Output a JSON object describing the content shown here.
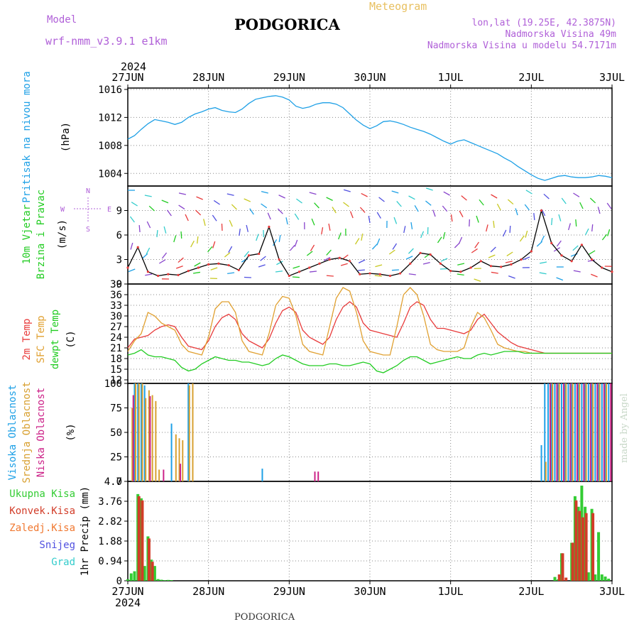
{
  "header": {
    "model_label": "Model",
    "model_name": "wrf-nmm_v3.9.1 e1km",
    "city": "PODGORICA",
    "meteogram": "Meteogram",
    "location": "lon,lat (19.25E, 42.3875N)",
    "elevation": "Nadmorska Visina 49m",
    "model_elevation": "Nadmorska Visina u modelu 54.7171m",
    "footer_city": "PODGORICA",
    "credit": "made by Angel"
  },
  "colors": {
    "pressure": "#1ea0e6",
    "wind_green": "#22cc22",
    "temp2m": "#e83b3b",
    "sfc": "#e0a030",
    "dew": "#22cc22",
    "high": "#1ea0e6",
    "mid": "#d8a030",
    "low": "#cc2288",
    "total": "#33cc33",
    "conv": "#d23c28",
    "frozen": "#f07830",
    "snow": "#5050e0",
    "graupel": "#33cccc",
    "compass": "#b060d8"
  },
  "chart_data": [
    {
      "type": "line",
      "panel": "pressure",
      "ylabel": [
        "Pritisak na nivou mora",
        "(hPa)"
      ],
      "yticks": [
        "1004",
        "1008",
        "1012",
        "1016"
      ],
      "ylim": [
        1002.2,
        1016.2
      ],
      "x_year": "2024",
      "xticks": [
        "27JUN",
        "28JUN",
        "29JUN",
        "30JUN",
        "1JUL",
        "2JUL",
        "3JUL"
      ],
      "series": [
        {
          "x": [
            0,
            2,
            4,
            6,
            8,
            10,
            12,
            14,
            16,
            18,
            20,
            22,
            24,
            26,
            28,
            30,
            32,
            34,
            36,
            38,
            40,
            42,
            44,
            46,
            48,
            50,
            52,
            54,
            56,
            58,
            60,
            62,
            64,
            66,
            68,
            70,
            72,
            74,
            76,
            78,
            80,
            82,
            84,
            86,
            88,
            90,
            92,
            94,
            96,
            98,
            100,
            102,
            104,
            106,
            108,
            110,
            112,
            114,
            116,
            118,
            120,
            122,
            124,
            126,
            128,
            130,
            132,
            134,
            136,
            138,
            140,
            142,
            144
          ],
          "values": [
            1008.9,
            1009.4,
            1010.3,
            1011.1,
            1011.7,
            1011.5,
            1011.3,
            1011.0,
            1011.3,
            1012.0,
            1012.5,
            1012.8,
            1013.2,
            1013.4,
            1013.0,
            1012.8,
            1012.7,
            1013.2,
            1014.0,
            1014.6,
            1014.8,
            1015.0,
            1015.1,
            1014.9,
            1014.5,
            1013.6,
            1013.3,
            1013.5,
            1013.9,
            1014.1,
            1014.1,
            1013.9,
            1013.4,
            1012.5,
            1011.6,
            1010.9,
            1010.4,
            1010.8,
            1011.4,
            1011.5,
            1011.3,
            1011.0,
            1010.6,
            1010.3,
            1010.0,
            1009.6,
            1009.1,
            1008.6,
            1008.2,
            1008.6,
            1008.8,
            1008.4,
            1008.0,
            1007.6,
            1007.2,
            1006.8,
            1006.2,
            1005.7,
            1005.0,
            1004.4,
            1003.8,
            1003.3,
            1003.0,
            1003.3,
            1003.6,
            1003.7,
            1003.5,
            1003.4,
            1003.4,
            1003.5,
            1003.7,
            1003.6,
            1003.4
          ]
        }
      ]
    },
    {
      "type": "line",
      "panel": "wind",
      "ylabel": [
        "10m Vjetar",
        "Brzina i Pravac",
        "(m/s)"
      ],
      "compass": [
        "N",
        "W",
        "E",
        "S"
      ],
      "yticks": [
        "0",
        "3",
        "6",
        "9"
      ],
      "ylim": [
        0,
        12
      ],
      "series": [
        {
          "x": [
            0,
            3,
            6,
            9,
            12,
            15,
            18,
            21,
            24,
            27,
            30,
            33,
            36,
            39,
            42,
            45,
            48,
            51,
            54,
            57,
            60,
            63,
            66,
            69,
            72,
            75,
            78,
            81,
            84,
            87,
            90,
            93,
            96,
            99,
            102,
            105,
            108,
            111,
            114,
            117,
            120,
            123,
            126,
            129,
            132,
            135,
            138,
            141,
            144
          ],
          "values": [
            2.0,
            4.5,
            1.5,
            1.0,
            1.2,
            1.1,
            1.6,
            2.0,
            2.4,
            2.5,
            2.3,
            1.7,
            3.5,
            3.7,
            7.0,
            3.0,
            1.0,
            1.5,
            2.0,
            2.5,
            3.0,
            3.2,
            2.8,
            1.2,
            1.3,
            1.2,
            1.0,
            1.3,
            2.5,
            3.8,
            3.6,
            2.5,
            1.6,
            1.5,
            2.0,
            2.8,
            2.2,
            2.1,
            2.4,
            3.0,
            4.0,
            9.0,
            5.0,
            3.5,
            2.8,
            4.8,
            3.0,
            2.0,
            1.5
          ]
        }
      ]
    },
    {
      "type": "line",
      "panel": "temperature",
      "ylabel": [
        "2m Temp",
        "SFC Temp",
        "dewpt Temp",
        "(C)"
      ],
      "yticks": [
        "12",
        "15",
        "18",
        "21",
        "24",
        "27",
        "30",
        "33",
        "36",
        "39"
      ],
      "ylim": [
        11,
        39
      ],
      "series": [
        {
          "name": "2m Temp",
          "x": [
            0,
            2,
            4,
            6,
            8,
            10,
            12,
            14,
            16,
            18,
            20,
            22,
            24,
            26,
            28,
            30,
            32,
            34,
            36,
            38,
            40,
            42,
            44,
            46,
            48,
            50,
            52,
            54,
            56,
            58,
            60,
            62,
            64,
            66,
            68,
            70,
            72,
            74,
            76,
            78,
            80,
            82,
            84,
            86,
            88,
            90,
            92,
            94,
            96,
            98,
            100,
            102,
            104,
            106,
            108,
            110,
            112,
            114,
            116,
            118,
            120,
            122,
            124,
            126,
            128,
            130,
            132,
            134,
            136,
            138,
            140,
            142,
            144
          ],
          "values": [
            21,
            23.5,
            24,
            24.5,
            26,
            27,
            27.5,
            27,
            24,
            21.5,
            21,
            20.5,
            23,
            27,
            29.5,
            30.5,
            29,
            25,
            23,
            22,
            21,
            23.5,
            28,
            31.5,
            32.5,
            31,
            26,
            24,
            23,
            22,
            24,
            29,
            32.5,
            34,
            32.5,
            28,
            26,
            25.5,
            25,
            24.5,
            24,
            28,
            32.5,
            34,
            33,
            29,
            26.5,
            26.5,
            26,
            25.5,
            25,
            26,
            29,
            30.5,
            28,
            25.5,
            24,
            22.5,
            21.5,
            21,
            20.5,
            20,
            19.5,
            19.5,
            19.5,
            19.5,
            19.5,
            19.5,
            19.5,
            19.5,
            19.5,
            19.5,
            19.5
          ]
        },
        {
          "name": "SFC Temp",
          "x": [
            0,
            2,
            4,
            6,
            8,
            10,
            12,
            14,
            16,
            18,
            20,
            22,
            24,
            26,
            28,
            30,
            32,
            34,
            36,
            38,
            40,
            42,
            44,
            46,
            48,
            50,
            52,
            54,
            56,
            58,
            60,
            62,
            64,
            66,
            68,
            70,
            72,
            74,
            76,
            78,
            80,
            82,
            84,
            86,
            88,
            90,
            92,
            94,
            96,
            98,
            100,
            102,
            104,
            106,
            108,
            110,
            112,
            114,
            116,
            118,
            120,
            122,
            124,
            126,
            128,
            130,
            132,
            134,
            136,
            138,
            140,
            142,
            144
          ],
          "values": [
            20,
            23,
            25,
            31,
            30,
            28,
            27,
            26,
            22,
            20,
            19.5,
            19,
            24,
            32,
            34,
            34,
            31,
            23,
            20,
            19.5,
            19,
            25,
            33,
            35.5,
            35,
            30,
            22,
            20,
            19.5,
            19,
            27,
            35,
            38,
            37,
            31,
            23,
            20,
            19.5,
            19,
            19,
            27,
            36,
            38,
            36,
            30,
            22,
            20.5,
            20,
            20,
            20,
            21,
            27,
            31,
            29.5,
            26,
            22,
            21,
            20.5,
            20,
            20,
            19.5,
            19.5,
            19.5,
            19.5,
            19.5,
            19.5,
            19.5,
            19.5,
            19.5,
            19.5,
            19.5,
            19.5,
            19.5
          ]
        },
        {
          "name": "dewpt Temp",
          "x": [
            0,
            2,
            4,
            6,
            8,
            10,
            12,
            14,
            16,
            18,
            20,
            22,
            24,
            26,
            28,
            30,
            32,
            34,
            36,
            38,
            40,
            42,
            44,
            46,
            48,
            50,
            52,
            54,
            56,
            58,
            60,
            62,
            64,
            66,
            68,
            70,
            72,
            74,
            76,
            78,
            80,
            82,
            84,
            86,
            88,
            90,
            92,
            94,
            96,
            98,
            100,
            102,
            104,
            106,
            108,
            110,
            112,
            114,
            116,
            118,
            120,
            122,
            124,
            126,
            128,
            130,
            132,
            134,
            136,
            138,
            140,
            142,
            144
          ],
          "values": [
            19,
            19.5,
            20.5,
            19,
            18.5,
            18.5,
            18,
            17.5,
            15.5,
            14.5,
            15,
            16.5,
            17.5,
            18.5,
            18,
            17.5,
            17.5,
            17,
            17,
            16.5,
            16,
            16.5,
            18,
            19,
            18.5,
            17.5,
            16.5,
            16,
            16,
            16,
            16.5,
            16.5,
            16,
            16,
            16.5,
            17,
            16.5,
            14.5,
            14,
            15,
            16,
            17.5,
            18.5,
            18.5,
            17.5,
            16.5,
            17,
            17.5,
            18,
            18.5,
            18,
            18,
            19,
            19.5,
            19,
            19.5,
            20,
            20,
            20,
            19.5,
            19.5,
            19.5,
            19.5,
            19.5,
            19.5,
            19.5,
            19.5,
            19.5,
            19.5,
            19.5,
            19.5,
            19.5,
            19.5
          ]
        }
      ]
    },
    {
      "type": "bar",
      "panel": "cloud",
      "ylabel": [
        "Visoka Oblacnost",
        "Srednja Oblacnost",
        "Niska Oblacnost",
        "(%)"
      ],
      "yticks": [
        "0",
        "25",
        "50",
        "75",
        "100"
      ],
      "ylim": [
        0,
        100
      ],
      "series": [
        {
          "name": "Visoka Oblacnost",
          "x": [
            2,
            3,
            4,
            5,
            13,
            18,
            40,
            123,
            124,
            125,
            126,
            127,
            128,
            129,
            130,
            131,
            132,
            133,
            134,
            135,
            136,
            137,
            138,
            139,
            140,
            141,
            142,
            143
          ],
          "values": [
            100,
            100,
            100,
            98,
            59,
            100,
            13,
            37,
            100,
            100,
            100,
            100,
            100,
            100,
            100,
            100,
            100,
            100,
            100,
            100,
            100,
            100,
            100,
            100,
            100,
            100,
            100,
            100
          ]
        },
        {
          "name": "Srednja Oblacnost",
          "x": [
            1,
            2,
            3,
            4,
            5,
            6,
            7,
            8,
            9,
            14,
            15,
            16,
            18,
            19,
            124,
            126,
            128,
            130,
            132,
            134,
            136,
            138,
            140,
            142
          ],
          "values": [
            75,
            100,
            100,
            100,
            85,
            93,
            88,
            82,
            12,
            48,
            44,
            42,
            98,
            100,
            20,
            100,
            100,
            100,
            100,
            100,
            100,
            100,
            100,
            100
          ]
        },
        {
          "name": "Niska Oblacnost",
          "x": [
            1,
            6,
            10,
            15,
            55,
            56,
            125,
            127,
            129,
            131,
            133,
            135,
            137,
            139,
            141,
            143
          ],
          "values": [
            88,
            87,
            12,
            18,
            10,
            10,
            100,
            100,
            100,
            100,
            100,
            100,
            100,
            100,
            100,
            100
          ]
        }
      ]
    },
    {
      "type": "bar",
      "panel": "precip",
      "ylabel": [
        "1hr Precip (mm)"
      ],
      "legend": [
        "Ukupna Kisa",
        "Konvek.Kisa",
        "Zaledj.Kisa",
        "Snijeg",
        "Grad"
      ],
      "yticks": [
        "0",
        "0.94",
        "1.88",
        "2.82",
        "3.76",
        "4.7"
      ],
      "ylim": [
        0,
        4.7
      ],
      "series": [
        {
          "name": "Ukupna Kisa",
          "x": [
            0,
            1,
            2,
            3,
            4,
            5,
            6,
            7,
            8,
            9,
            10,
            11,
            12,
            13,
            127,
            128,
            129,
            132,
            133,
            134,
            135,
            136,
            137,
            138,
            139,
            140,
            141,
            142,
            143
          ],
          "values": [
            0.07,
            0.35,
            0.45,
            4.1,
            3.9,
            0.7,
            2.1,
            1.0,
            0.7,
            0.08,
            0.05,
            0.03,
            0.04,
            0.03,
            0.18,
            0.07,
            1.3,
            1.8,
            4.0,
            3.5,
            4.5,
            3.5,
            0.4,
            3.4,
            0.3,
            2.3,
            0.3,
            0.2,
            0.1
          ]
        },
        {
          "name": "Konvek.Kisa",
          "x": [
            3,
            4,
            6,
            7,
            128,
            129,
            130,
            132,
            133,
            134,
            135,
            136,
            138
          ],
          "values": [
            4.0,
            3.8,
            2.0,
            0.9,
            0.3,
            1.3,
            0.15,
            1.8,
            3.8,
            3.3,
            3.0,
            3.2,
            3.2
          ]
        }
      ]
    }
  ]
}
